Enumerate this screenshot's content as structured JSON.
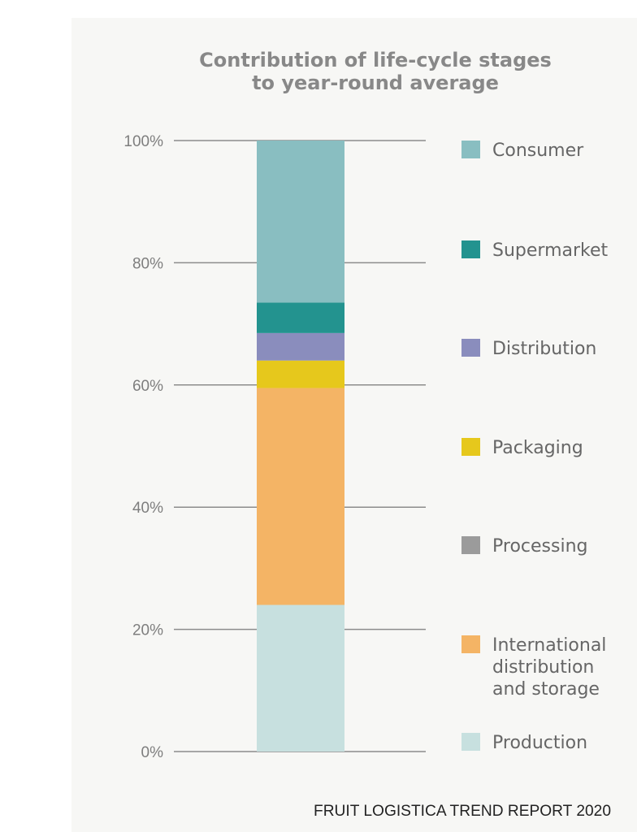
{
  "chart_data": {
    "type": "bar",
    "stacked": true,
    "title_lines": [
      "Contribution of life-cycle stages",
      "to year-round average"
    ],
    "y_ticks": [
      "0%",
      "20%",
      "40%",
      "60%",
      "80%",
      "100%"
    ],
    "ylim": [
      0,
      100
    ],
    "grid": true,
    "legend_position": "right",
    "series": [
      {
        "name": "Production",
        "value": 24,
        "color": "#c7e0df"
      },
      {
        "name": "International distribution and storage",
        "label_lines": [
          "International",
          "distribution",
          "and storage"
        ],
        "value": 35.5,
        "color": "#f4b465"
      },
      {
        "name": "Processing",
        "value": 0,
        "color": "#9b9b9b"
      },
      {
        "name": "Packaging",
        "value": 4.5,
        "color": "#e6c81c"
      },
      {
        "name": "Distribution",
        "value": 4.5,
        "color": "#8a8dbd"
      },
      {
        "name": "Supermarket",
        "value": 5,
        "color": "#23938f"
      },
      {
        "name": "Consumer",
        "value": 26.5,
        "color": "#89bec1"
      }
    ]
  },
  "footer": {
    "source": "FRUIT LOGISTICA TREND REPORT 2020"
  }
}
